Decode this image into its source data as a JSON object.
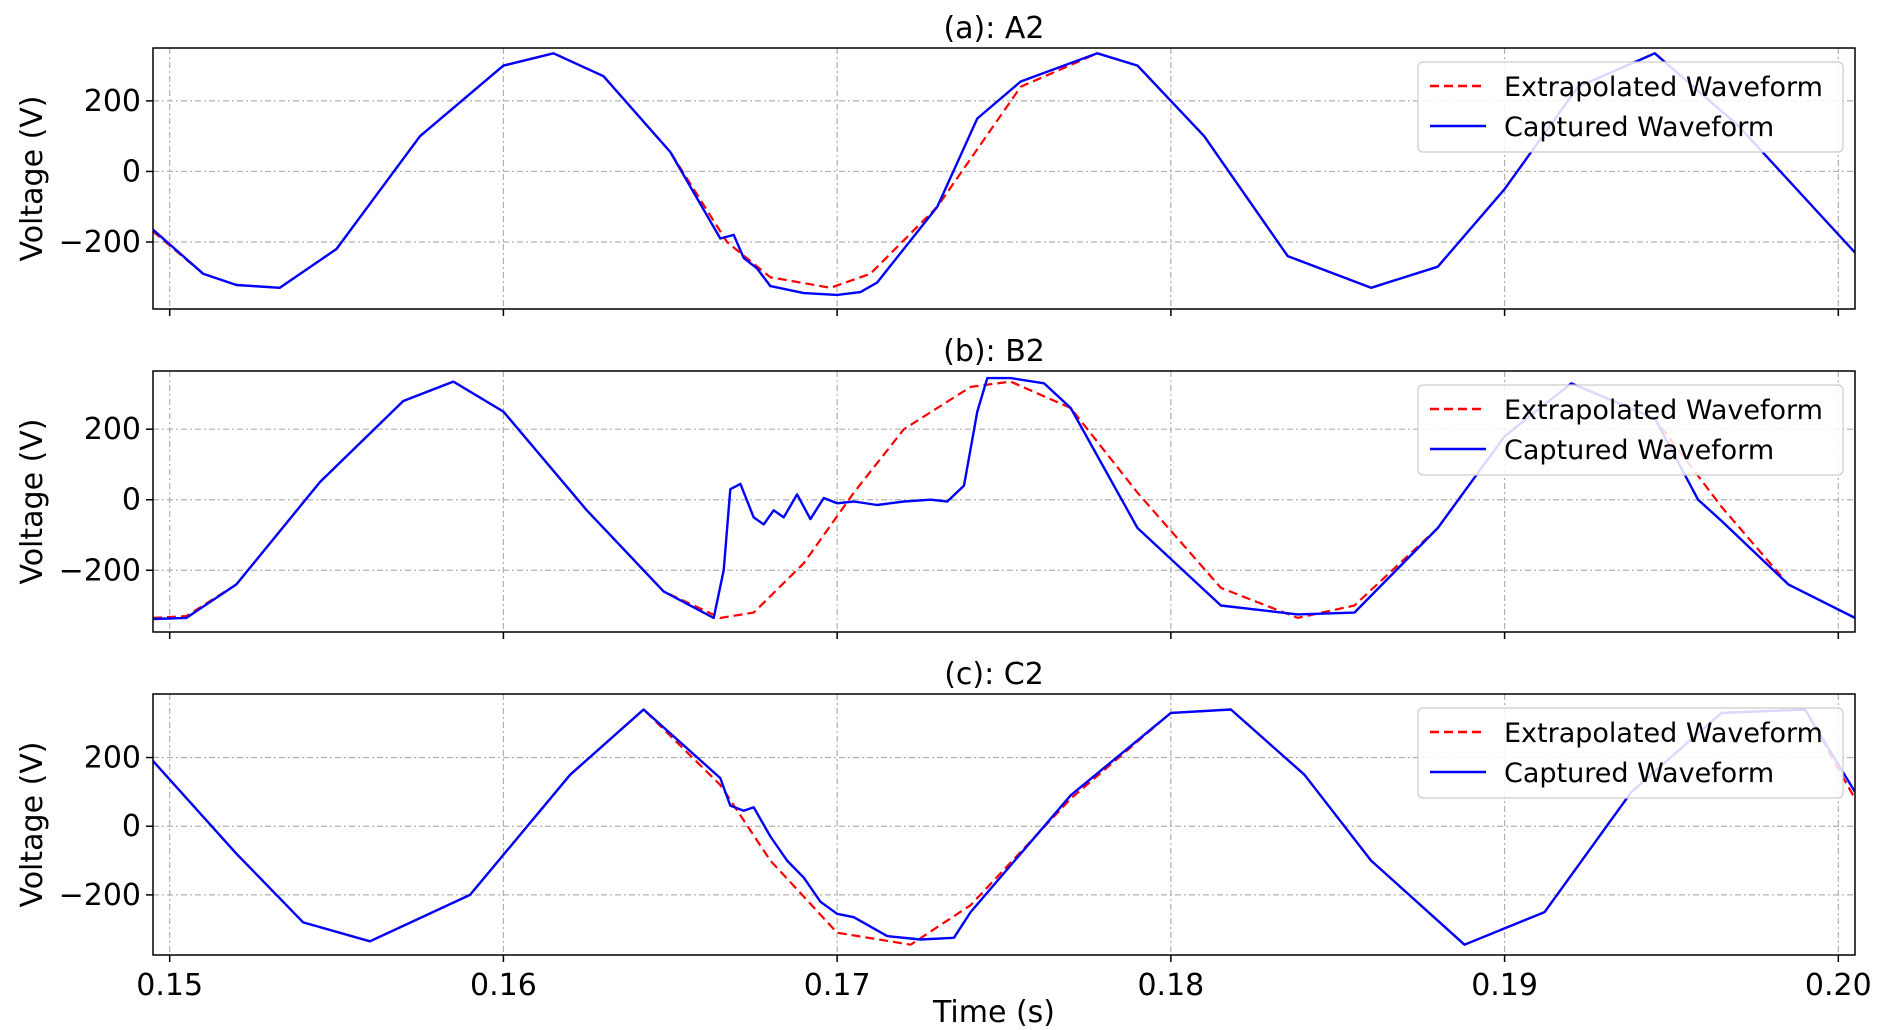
{
  "figure": {
    "xlabel": "Time (s)",
    "x_ticks": [
      0.15,
      0.16,
      0.17,
      0.18,
      0.19,
      0.2
    ],
    "x_tick_labels": [
      "0.15",
      "0.16",
      "0.17",
      "0.18",
      "0.19",
      "0.20"
    ]
  },
  "colors": {
    "extrapolated": "#ff0000",
    "captured": "#0000ff",
    "grid": "#b0b0b0"
  },
  "chart_data": [
    {
      "type": "line",
      "title": "(a): A2",
      "xlabel": "",
      "ylabel": "Voltage (V)",
      "xlim": [
        0.1495,
        0.2005
      ],
      "ylim": [
        -390,
        350
      ],
      "y_ticks": [
        -200,
        0,
        200
      ],
      "y_tick_labels": [
        "−200",
        "0",
        "200"
      ],
      "grid": true,
      "legend_position": "top-right",
      "series": [
        {
          "name": "Extrapolated Waveform",
          "style": "dashed",
          "x": [
            0.1495,
            0.151,
            0.152,
            0.1533,
            0.155,
            0.1575,
            0.16,
            0.1615,
            0.163,
            0.165,
            0.1667,
            0.168,
            0.1698,
            0.171,
            0.173,
            0.1755,
            0.1778,
            0.179,
            0.181,
            0.1835,
            0.186,
            0.188,
            0.19,
            0.1922,
            0.1945,
            0.197,
            0.2005
          ],
          "y": [
            -170,
            -290,
            -322,
            -330,
            -220,
            100,
            300,
            335,
            270,
            55,
            -200,
            -300,
            -330,
            -290,
            -100,
            240,
            335,
            300,
            100,
            -240,
            -330,
            -270,
            -50,
            240,
            335,
            130,
            -230
          ]
        },
        {
          "name": "Captured Waveform",
          "style": "solid",
          "x": [
            0.1495,
            0.151,
            0.152,
            0.1533,
            0.155,
            0.1575,
            0.16,
            0.1615,
            0.163,
            0.165,
            0.1665,
            0.1669,
            0.1672,
            0.1676,
            0.168,
            0.169,
            0.17,
            0.1707,
            0.1712,
            0.173,
            0.1742,
            0.1755,
            0.1778,
            0.179,
            0.181,
            0.1835,
            0.186,
            0.188,
            0.19,
            0.1922,
            0.1945,
            0.197,
            0.2005
          ],
          "y": [
            -165,
            -290,
            -322,
            -330,
            -220,
            100,
            300,
            335,
            270,
            55,
            -190,
            -180,
            -245,
            -275,
            -325,
            -345,
            -350,
            -342,
            -315,
            -100,
            150,
            255,
            335,
            300,
            100,
            -240,
            -330,
            -270,
            -50,
            240,
            335,
            130,
            -230
          ]
        }
      ]
    },
    {
      "type": "line",
      "title": "(b): B2",
      "xlabel": "",
      "ylabel": "Voltage (V)",
      "xlim": [
        0.1495,
        0.2005
      ],
      "ylim": [
        -375,
        365
      ],
      "y_ticks": [
        -200,
        0,
        200
      ],
      "y_tick_labels": [
        "−200",
        "0",
        "200"
      ],
      "grid": true,
      "legend_position": "top-right",
      "series": [
        {
          "name": "Extrapolated Waveform",
          "style": "dashed",
          "x": [
            0.1495,
            0.1505,
            0.152,
            0.1545,
            0.157,
            0.1585,
            0.16,
            0.1625,
            0.1648,
            0.1665,
            0.1675,
            0.169,
            0.1705,
            0.172,
            0.174,
            0.1752,
            0.177,
            0.179,
            0.1815,
            0.1838,
            0.1855,
            0.188,
            0.19,
            0.192,
            0.1945,
            0.1965,
            0.1985,
            0.2005
          ],
          "y": [
            -335,
            -330,
            -240,
            50,
            280,
            335,
            250,
            -30,
            -260,
            -335,
            -320,
            -180,
            20,
            200,
            320,
            335,
            260,
            20,
            -250,
            -335,
            -300,
            -80,
            180,
            330,
            230,
            -20,
            -240,
            -335
          ]
        },
        {
          "name": "Captured Waveform",
          "style": "solid",
          "x": [
            0.1495,
            0.1505,
            0.152,
            0.1545,
            0.157,
            0.1585,
            0.16,
            0.1625,
            0.1648,
            0.1663,
            0.1666,
            0.1668,
            0.1671,
            0.1675,
            0.1678,
            0.1681,
            0.1684,
            0.1688,
            0.1692,
            0.1696,
            0.17,
            0.1705,
            0.1712,
            0.172,
            0.1728,
            0.1733,
            0.1738,
            0.1742,
            0.1745,
            0.1752,
            0.1762,
            0.177,
            0.179,
            0.1815,
            0.1838,
            0.1855,
            0.188,
            0.19,
            0.192,
            0.1945,
            0.1958,
            0.1965,
            0.1985,
            0.2005
          ],
          "y": [
            -338,
            -335,
            -240,
            50,
            280,
            335,
            250,
            -30,
            -260,
            -335,
            -200,
            30,
            45,
            -50,
            -70,
            -30,
            -50,
            15,
            -55,
            5,
            -10,
            -5,
            -15,
            -5,
            0,
            -5,
            40,
            250,
            345,
            345,
            330,
            260,
            -80,
            -300,
            -325,
            -320,
            -80,
            180,
            330,
            230,
            0,
            -60,
            -240,
            -335
          ]
        }
      ]
    },
    {
      "type": "line",
      "title": "(c): C2",
      "xlabel": "Time (s)",
      "ylabel": "Voltage (V)",
      "xlim": [
        0.1495,
        0.2005
      ],
      "ylim": [
        -375,
        385
      ],
      "y_ticks": [
        -200,
        0,
        200
      ],
      "y_tick_labels": [
        "−200",
        "0",
        "200"
      ],
      "grid": true,
      "legend_position": "top-right",
      "series": [
        {
          "name": "Extrapolated Waveform",
          "style": "dashed",
          "x": [
            0.1495,
            0.152,
            0.154,
            0.156,
            0.159,
            0.162,
            0.1642,
            0.1665,
            0.168,
            0.17,
            0.1722,
            0.174,
            0.177,
            0.18,
            0.1818,
            0.184,
            0.186,
            0.1888,
            0.1912,
            0.1938,
            0.1965,
            0.199,
            0.2005
          ],
          "y": [
            190,
            -80,
            -280,
            -335,
            -200,
            150,
            340,
            120,
            -100,
            -310,
            -345,
            -230,
            80,
            330,
            340,
            150,
            -100,
            -345,
            -250,
            100,
            330,
            340,
            80
          ]
        },
        {
          "name": "Captured Waveform",
          "style": "solid",
          "x": [
            0.1495,
            0.152,
            0.154,
            0.156,
            0.159,
            0.162,
            0.1642,
            0.1665,
            0.1668,
            0.1672,
            0.1675,
            0.168,
            0.1685,
            0.169,
            0.1695,
            0.17,
            0.1705,
            0.1715,
            0.1725,
            0.1735,
            0.174,
            0.177,
            0.18,
            0.1818,
            0.184,
            0.186,
            0.1888,
            0.1912,
            0.1938,
            0.1965,
            0.199,
            0.2005
          ],
          "y": [
            190,
            -80,
            -280,
            -335,
            -200,
            150,
            340,
            140,
            60,
            45,
            55,
            -30,
            -100,
            -150,
            -220,
            -255,
            -265,
            -320,
            -330,
            -325,
            -250,
            90,
            330,
            340,
            150,
            -100,
            -345,
            -250,
            100,
            330,
            340,
            100
          ]
        }
      ]
    }
  ]
}
